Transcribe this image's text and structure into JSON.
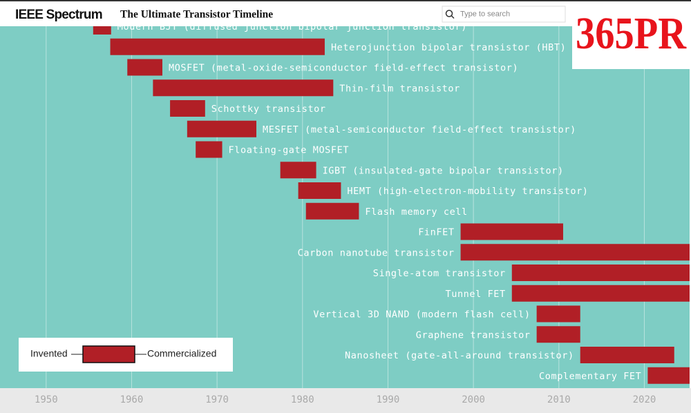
{
  "header": {
    "brand": "IEEE Spectrum",
    "search_placeholder": "Type to search",
    "logo": "365PR"
  },
  "chart_data": {
    "type": "timeline",
    "title": "The Ultimate Transistor Timeline",
    "categories": [
      "Modern BJT (diffused junction bipolar junction transistor)",
      "Heterojunction bipolar transistor (HBT)",
      "MOSFET (metal-oxide-semiconductor field-effect transistor)",
      "Thin-film transistor",
      "Schottky transistor",
      "MESFET (metal-semiconductor field-effect transistor)",
      "Floating-gate MOSFET",
      "IGBT (insulated-gate bipolar transistor)",
      "HEMT (high-electron-mobility transistor)",
      "Flash memory cell",
      "FinFET",
      "Carbon nanotube transistor",
      "Single-atom transistor",
      "Tunnel FET",
      "Vertical 3D NAND (modern flash cell)",
      "Graphene transistor",
      "Nanosheet (gate-all-around transistor)",
      "Complementary FET"
    ],
    "series": [
      {
        "name": "Invented",
        "values": [
          1955.5,
          1957.5,
          1959.5,
          1962.5,
          1964.5,
          1966.5,
          1967.5,
          1977.4,
          1979.5,
          1980.4,
          1998.5,
          1998.5,
          2004.5,
          2004.5,
          2007.4,
          2007.4,
          2012.5,
          2020.4
        ]
      },
      {
        "name": "Commercialized",
        "values": [
          1957.6,
          1982.6,
          1963.6,
          1983.6,
          1968.6,
          1974.6,
          1970.6,
          1981.6,
          1984.5,
          1986.6,
          2010.5,
          2025.3,
          2025.3,
          2025.3,
          2012.5,
          2012.5,
          2023.5,
          2025.3
        ]
      }
    ],
    "color": "#b11f26",
    "xlim": [
      1944.6,
      2025.3
    ],
    "xticks": [
      1950,
      1960,
      1970,
      1980,
      1990,
      2000,
      2010,
      2020
    ],
    "grid": true
  }
}
